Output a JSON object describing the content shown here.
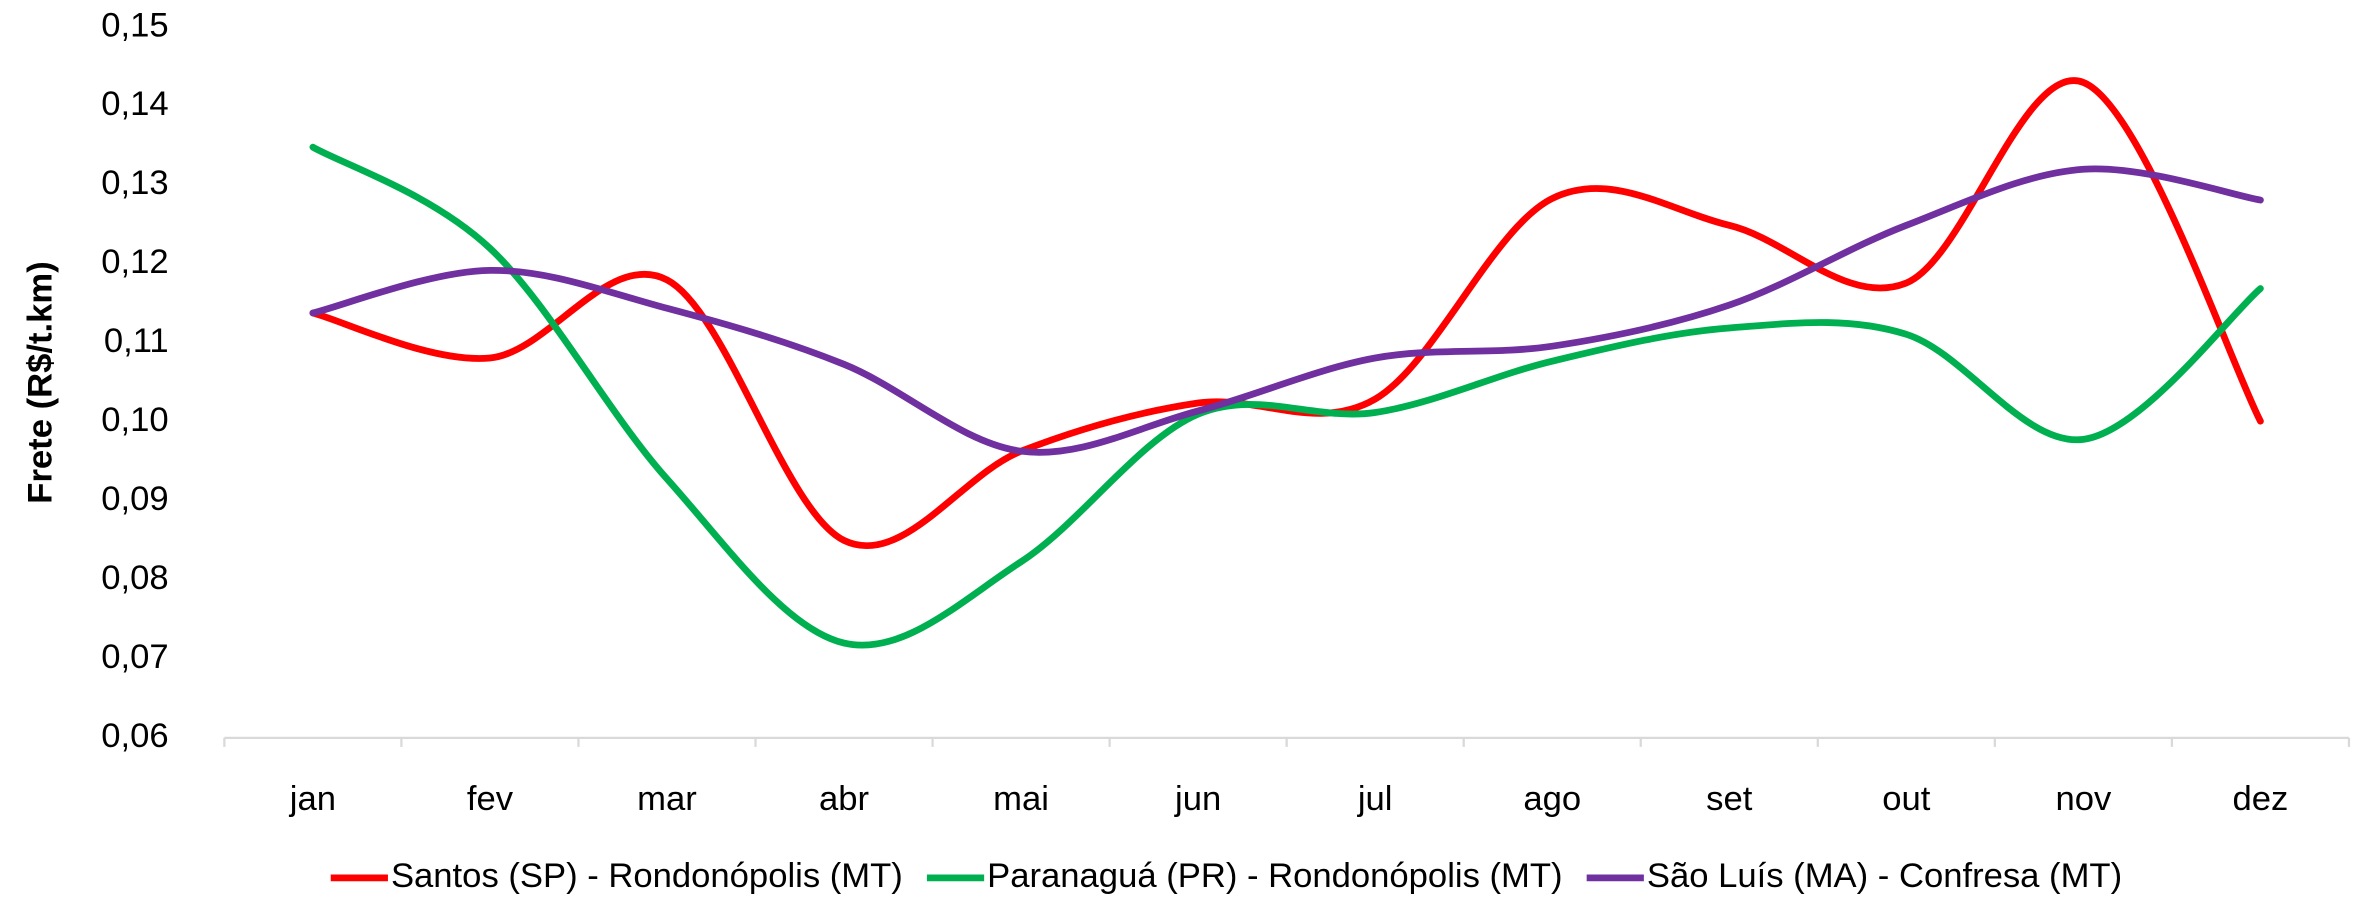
{
  "chart_data": {
    "type": "line",
    "y_axis_label": "Frete (R$/t.km)",
    "categories": [
      "jan",
      "fev",
      "mar",
      "abr",
      "mai",
      "jun",
      "jul",
      "ago",
      "set",
      "out",
      "nov",
      "dez"
    ],
    "series": [
      {
        "name": "Santos (SP) - Rondonópolis (MT)",
        "color": "#ff0000",
        "values": [
          0.1138,
          0.1081,
          0.118,
          0.085,
          0.0963,
          0.1024,
          0.1029,
          0.1283,
          0.1249,
          0.1176,
          0.143,
          0.1001
        ]
      },
      {
        "name": "Paranaguá (PR) - Rondonópolis (MT)",
        "color": "#00b050",
        "values": [
          0.1348,
          0.122,
          0.0928,
          0.072,
          0.0823,
          0.101,
          0.1012,
          0.1077,
          0.1119,
          0.1111,
          0.0978,
          0.1169
        ]
      },
      {
        "name": "São Luís (MA) - Confresa (MT)",
        "color": "#7030a0",
        "values": [
          0.1138,
          0.1192,
          0.1144,
          0.1073,
          0.0963,
          0.1014,
          0.1081,
          0.1096,
          0.1148,
          0.1249,
          0.132,
          0.1281
        ]
      }
    ],
    "ylim": [
      0.06,
      0.15
    ],
    "yticks": [
      {
        "value": 0.06,
        "label": "0,06"
      },
      {
        "value": 0.07,
        "label": "0,07"
      },
      {
        "value": 0.08,
        "label": "0,08"
      },
      {
        "value": 0.09,
        "label": "0,09"
      },
      {
        "value": 0.1,
        "label": "0,10"
      },
      {
        "value": 0.11,
        "label": "0,11"
      },
      {
        "value": 0.12,
        "label": "0,12"
      },
      {
        "value": 0.13,
        "label": "0,13"
      },
      {
        "value": 0.14,
        "label": "0,14"
      },
      {
        "value": 0.15,
        "label": "0,15"
      }
    ],
    "grid": false,
    "smooth": true,
    "legend": "bottom"
  }
}
